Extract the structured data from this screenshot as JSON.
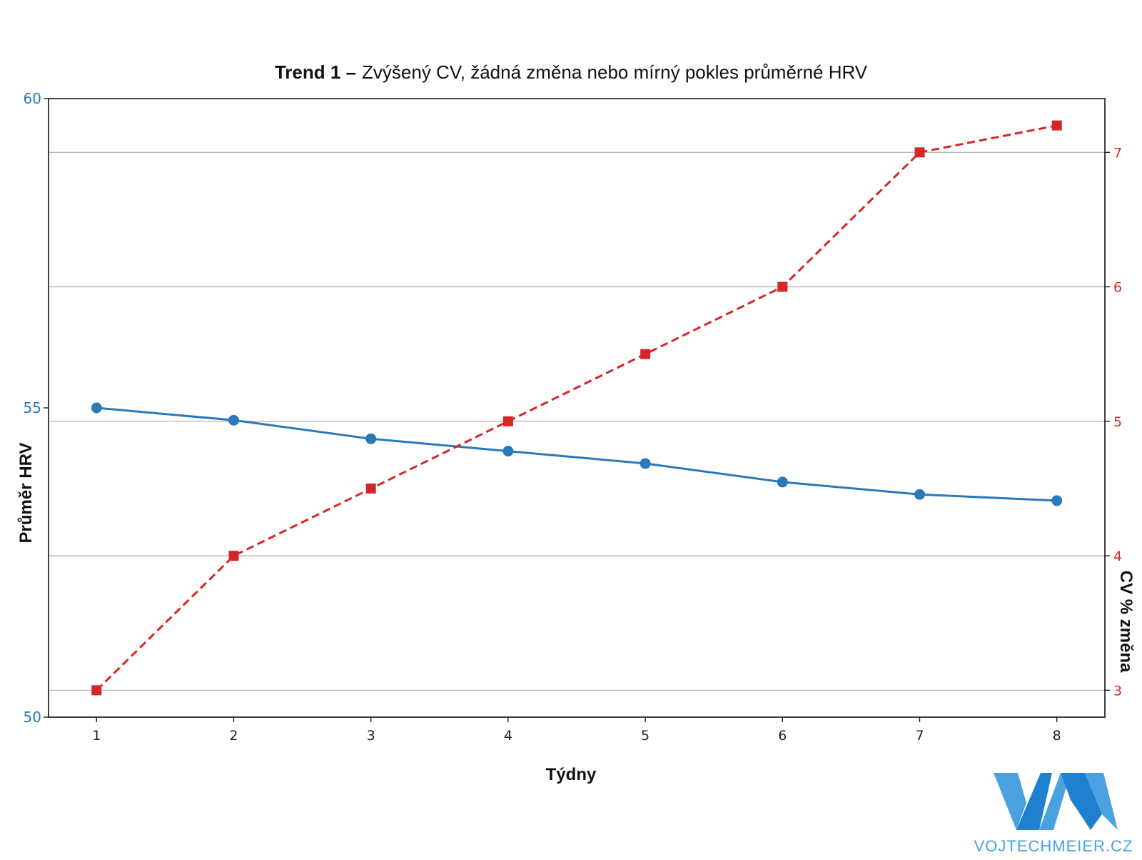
{
  "chart_data": {
    "type": "line",
    "title_bold": "Trend 1 –",
    "title_rest": "Zvýšený CV, žádná změna nebo mírný pokles průměrné HRV",
    "xlabel": "Týdny",
    "ylabel_left": "Průměr HRV",
    "ylabel_right": "CV % změna",
    "x": [
      1,
      2,
      3,
      4,
      5,
      6,
      7,
      8
    ],
    "y_left_range": [
      50,
      60
    ],
    "y_left_ticks": [
      50,
      55,
      60
    ],
    "y_right_range": [
      2.8,
      7.4
    ],
    "y_right_ticks": [
      3,
      4,
      5,
      6,
      7
    ],
    "grid": "horizontal, aligned to right axis ticks",
    "series": [
      {
        "axis": "left",
        "values": [
          55.0,
          54.8,
          54.5,
          54.3,
          54.1,
          53.8,
          53.6,
          53.5
        ],
        "color": "#2a7ab9",
        "marker": "circle",
        "line_style": "solid"
      },
      {
        "axis": "right",
        "values": [
          3.0,
          4.0,
          4.5,
          5.0,
          5.5,
          6.0,
          7.0,
          7.2
        ],
        "color": "#d62728",
        "marker": "square",
        "line_style": "dashed"
      }
    ]
  },
  "logo": {
    "text": "VOJTECHMEIER.CZ",
    "color_light": "#49a1e0",
    "color_dark": "#1f7fd1"
  }
}
